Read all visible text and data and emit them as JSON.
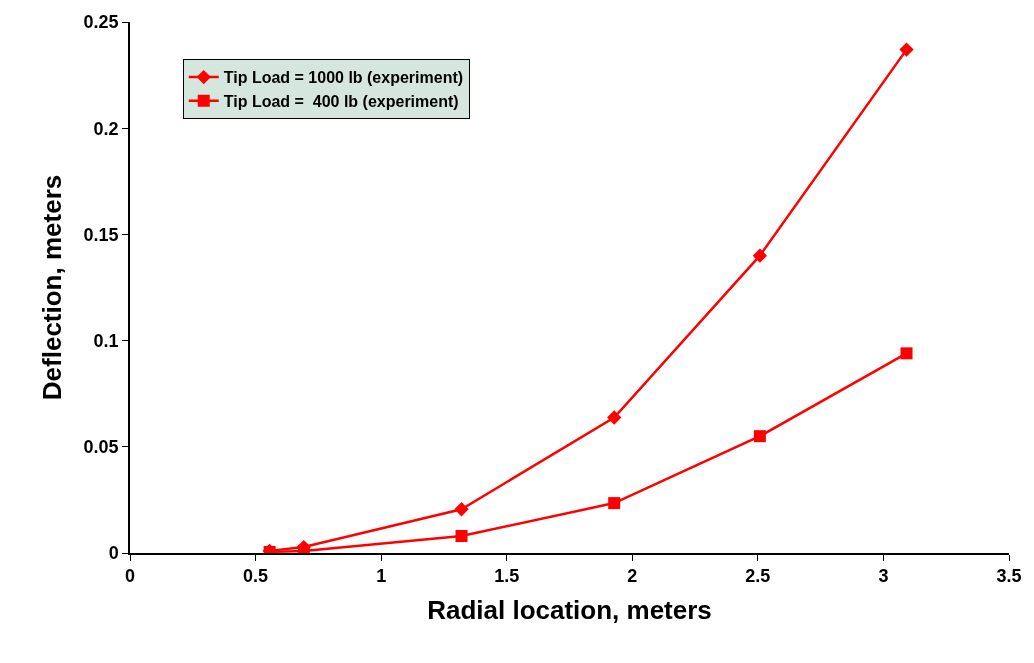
{
  "chart_data": {
    "type": "line",
    "xlabel": "Radial location, meters",
    "ylabel": "Deflection, meters",
    "x": [
      0.556,
      0.692,
      1.32,
      1.928,
      2.508,
      3.092
    ],
    "series": [
      {
        "name": "Tip Load = 1000 lb (experiment)",
        "color": "#ff0000",
        "marker": "diamond",
        "values": [
          0.001,
          0.0028,
          0.0206,
          0.0638,
          0.14,
          0.237
        ]
      },
      {
        "name": "Tip Load =  400 lb (experiment)",
        "color": "#ff0000",
        "marker": "square",
        "values": [
          0.0005,
          0.001,
          0.008,
          0.0235,
          0.055,
          0.094
        ]
      }
    ],
    "xlim": [
      0,
      3.5
    ],
    "xticks": [
      0,
      0.5,
      1,
      1.5,
      2,
      2.5,
      3,
      3.5
    ],
    "ylim": [
      0,
      0.25
    ],
    "yticks": [
      0,
      0.05,
      0.1,
      0.15,
      0.2,
      0.25
    ],
    "legend": "top left",
    "line_style": "solid"
  }
}
